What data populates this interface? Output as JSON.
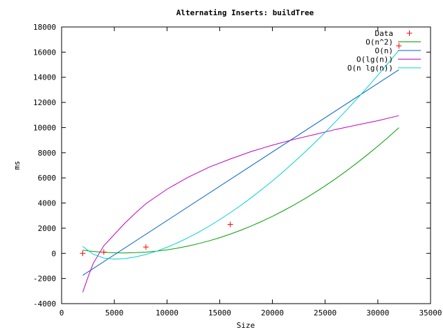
{
  "chart_data": {
    "type": "line",
    "title": "Alternating Inserts: buildTree",
    "xlabel": "Size",
    "ylabel": "ms",
    "xlim": [
      0,
      35000
    ],
    "ylim": [
      -4000,
      18000
    ],
    "xticks": [
      0,
      5000,
      10000,
      15000,
      20000,
      25000,
      30000,
      35000
    ],
    "yticks": [
      -4000,
      -2000,
      0,
      2000,
      4000,
      6000,
      8000,
      10000,
      12000,
      14000,
      16000,
      18000
    ],
    "grid": false,
    "legend_position": "top-right",
    "points": {
      "name": "Data",
      "color": "#ff0000",
      "x": [
        2000,
        4000,
        8000,
        16000,
        32000
      ],
      "y": [
        0,
        100,
        500,
        2300,
        16500
      ]
    },
    "series": [
      {
        "name": "O(n^2)",
        "color": "#00a000",
        "x": [
          2000,
          3000,
          4000,
          5000,
          6000,
          7000,
          8000,
          9000,
          10000,
          11000,
          12000,
          13000,
          14000,
          15000,
          16000,
          17000,
          18000,
          19000,
          20000,
          21000,
          22000,
          23000,
          24000,
          25000,
          26000,
          27000,
          28000,
          29000,
          30000,
          31000,
          32000
        ],
        "y": [
          250,
          153,
          85,
          45,
          34,
          53,
          100,
          176,
          281,
          416,
          580,
          773,
          995,
          1246,
          1527,
          1837,
          2176,
          2544,
          2942,
          3369,
          3825,
          4310,
          4824,
          5368,
          5941,
          6544,
          7175,
          7836,
          8526,
          9246,
          9994
        ]
      },
      {
        "name": "O(n)",
        "color": "#0060d0",
        "x": [
          2000,
          32000
        ],
        "y": [
          -1750,
          14600
        ]
      },
      {
        "name": "O(lg(n))",
        "color": "#c000c0",
        "x": [
          2000,
          2500,
          3000,
          4000,
          5000,
          6000,
          7000,
          8000,
          10000,
          12000,
          14000,
          16000,
          18000,
          20000,
          22000,
          24000,
          26000,
          28000,
          30000,
          32000
        ],
        "y": [
          -3100,
          -1900,
          -800,
          600,
          1500,
          2400,
          3200,
          3950,
          5100,
          6050,
          6850,
          7500,
          8100,
          8600,
          9050,
          9450,
          9850,
          10200,
          10550,
          10950
        ]
      },
      {
        "name": "O(n lg(n))",
        "color": "#00d0d0",
        "x": [
          2000,
          3000,
          4000,
          5000,
          6000,
          7000,
          8000,
          9000,
          10000,
          11000,
          12000,
          13000,
          14000,
          15000,
          16000,
          17000,
          18000,
          19000,
          20000,
          21000,
          22000,
          23000,
          24000,
          25000,
          26000,
          27000,
          28000,
          29000,
          30000,
          31000,
          32000
        ],
        "y": [
          550,
          -75,
          -370,
          -460,
          -420,
          -290,
          -90,
          170,
          480,
          840,
          1240,
          1680,
          2160,
          2680,
          3230,
          3810,
          4430,
          5080,
          5760,
          6470,
          7220,
          7990,
          8790,
          9620,
          10480,
          11360,
          12270,
          13200,
          14160,
          15140,
          16150
        ]
      }
    ]
  }
}
